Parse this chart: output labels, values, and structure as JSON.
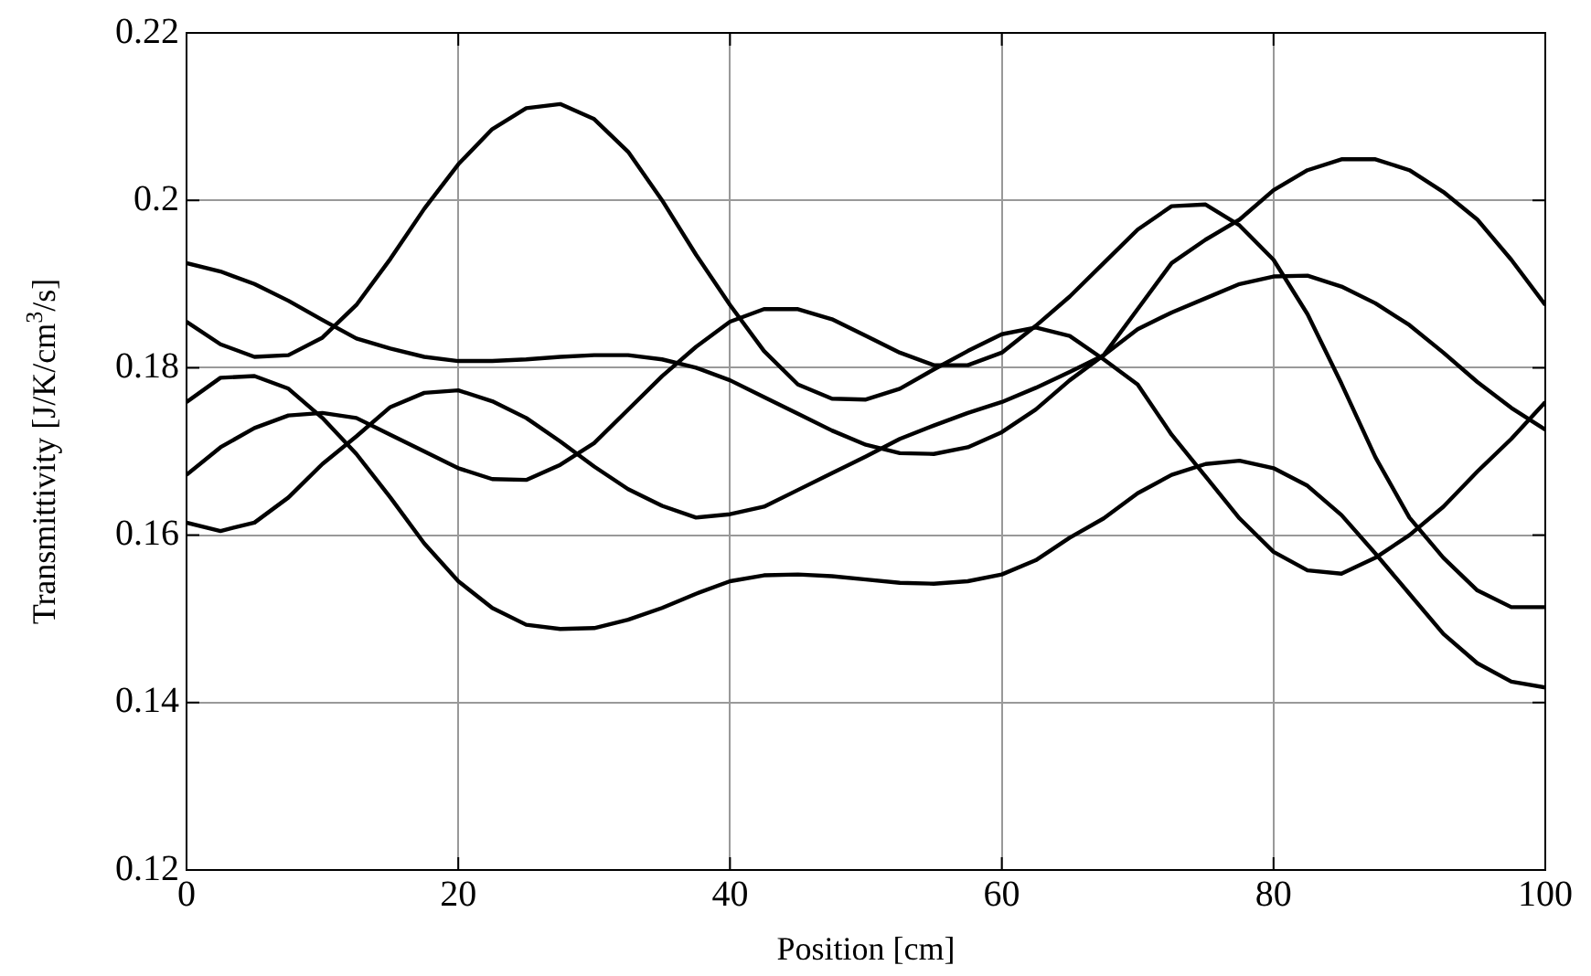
{
  "chart_data": {
    "type": "line",
    "xlabel": "Position [cm]",
    "ylabel": "Transmittivity [J/K/cm$^{3}$/s]",
    "x": [
      0,
      2.5,
      5,
      7.5,
      10,
      12.5,
      15,
      17.5,
      20,
      22.5,
      25,
      27.5,
      30,
      32.5,
      35,
      37.5,
      40,
      42.5,
      45,
      47.5,
      50,
      52.5,
      55,
      57.5,
      60,
      62.5,
      65,
      67.5,
      70,
      72.5,
      75,
      77.5,
      80,
      82.5,
      85,
      87.5,
      90,
      92.5,
      95,
      97.5,
      100
    ],
    "series": [
      {
        "color": "#000000",
        "values": [
          0.1855,
          0.1828,
          0.1813,
          0.1815,
          0.1836,
          0.1875,
          0.193,
          0.199,
          0.2043,
          0.2085,
          0.211,
          0.2115,
          0.2097,
          0.2058,
          0.2,
          0.1935,
          0.1875,
          0.182,
          0.178,
          0.1763,
          0.1762,
          0.1775,
          0.1798,
          0.182,
          0.184,
          0.1848,
          0.1838,
          0.181,
          0.178,
          0.172,
          0.167,
          0.162,
          0.158,
          0.1558,
          0.1554,
          0.1573,
          0.16,
          0.1634,
          0.1676,
          0.1715,
          0.1759
        ]
      },
      {
        "color": "#000000",
        "values": [
          0.1925,
          0.1915,
          0.19,
          0.188,
          0.1857,
          0.1835,
          0.1823,
          0.1813,
          0.1808,
          0.1808,
          0.181,
          0.1813,
          0.1815,
          0.1815,
          0.181,
          0.18,
          0.1785,
          0.1765,
          0.1745,
          0.1725,
          0.1708,
          0.1698,
          0.1697,
          0.1705,
          0.1723,
          0.175,
          0.1785,
          0.1815,
          0.187,
          0.1925,
          0.1953,
          0.1977,
          0.2012,
          0.2036,
          0.2049,
          0.2049,
          0.2036,
          0.201,
          0.1977,
          0.1929,
          0.1875
        ]
      },
      {
        "color": "#000000",
        "values": [
          0.1759,
          0.1788,
          0.179,
          0.1775,
          0.174,
          0.1697,
          0.1645,
          0.159,
          0.1545,
          0.1513,
          0.1493,
          0.1488,
          0.1489,
          0.1499,
          0.1513,
          0.153,
          0.1545,
          0.1552,
          0.1553,
          0.1551,
          0.1547,
          0.1543,
          0.1542,
          0.1545,
          0.1553,
          0.157,
          0.1597,
          0.162,
          0.165,
          0.1672,
          0.1685,
          0.1689,
          0.168,
          0.1659,
          0.1624,
          0.1578,
          0.153,
          0.1482,
          0.1447,
          0.1425,
          0.1418
        ]
      },
      {
        "color": "#000000",
        "values": [
          0.1672,
          0.1705,
          0.1728,
          0.1743,
          0.1746,
          0.174,
          0.172,
          0.17,
          0.168,
          0.1667,
          0.1666,
          0.1684,
          0.171,
          0.175,
          0.179,
          0.1825,
          0.1855,
          0.187,
          0.187,
          0.1858,
          0.1838,
          0.1818,
          0.1803,
          0.1803,
          0.1818,
          0.185,
          0.1885,
          0.1925,
          0.1965,
          0.1993,
          0.1995,
          0.197,
          0.1929,
          0.1864,
          0.1781,
          0.1693,
          0.1621,
          0.1573,
          0.1534,
          0.1514,
          0.1514
        ]
      },
      {
        "color": "#000000",
        "values": [
          0.1615,
          0.1605,
          0.1615,
          0.1645,
          0.1685,
          0.1718,
          0.1753,
          0.177,
          0.1773,
          0.176,
          0.174,
          0.1712,
          0.1682,
          0.1655,
          0.1635,
          0.1621,
          0.1625,
          0.1634,
          0.1654,
          0.1674,
          0.1694,
          0.1715,
          0.1731,
          0.1746,
          0.1759,
          0.1776,
          0.1795,
          0.1815,
          0.1846,
          0.1866,
          0.1883,
          0.19,
          0.1909,
          0.191,
          0.1897,
          0.1877,
          0.1851,
          0.1818,
          0.1783,
          0.1752,
          0.1726
        ]
      }
    ],
    "xlim": [
      0,
      100
    ],
    "xticks": [
      0,
      20,
      40,
      60,
      80,
      100
    ],
    "ylim": [
      0.12,
      0.22
    ],
    "yticks": [
      0.12,
      0.14,
      0.16,
      0.18,
      0.2,
      0.22
    ],
    "grid": true,
    "legend": false,
    "marker": "none",
    "line_style": "solid"
  }
}
